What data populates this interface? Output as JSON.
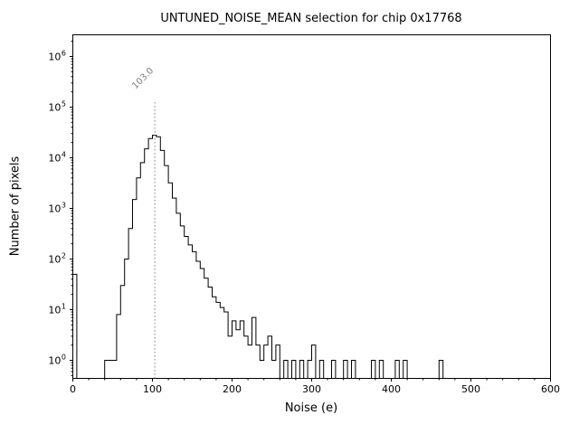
{
  "title": "UNTUNED_NOISE_MEAN selection for chip 0x17768",
  "chart_data": {
    "type": "bar",
    "subtype": "step-histogram",
    "title": "UNTUNED_NOISE_MEAN selection for chip 0x17768",
    "xlabel": "Noise (e)",
    "ylabel": "Number of pixels",
    "xlim": [
      0,
      600
    ],
    "yscale": "log",
    "ytick_exponents": [
      0,
      1,
      2,
      3,
      4,
      5,
      6
    ],
    "xticks": [
      0,
      100,
      200,
      300,
      400,
      500,
      600
    ],
    "x_minor_step": 20,
    "bin_width": 5,
    "bins": [
      [
        0,
        50
      ],
      [
        40,
        1
      ],
      [
        45,
        1
      ],
      [
        50,
        1
      ],
      [
        55,
        8
      ],
      [
        60,
        30
      ],
      [
        65,
        100
      ],
      [
        70,
        400
      ],
      [
        75,
        1500
      ],
      [
        80,
        4000
      ],
      [
        85,
        8000
      ],
      [
        90,
        15000
      ],
      [
        95,
        24000
      ],
      [
        100,
        28000
      ],
      [
        105,
        26000
      ],
      [
        110,
        14000
      ],
      [
        115,
        7000
      ],
      [
        120,
        3200
      ],
      [
        125,
        1600
      ],
      [
        130,
        800
      ],
      [
        135,
        450
      ],
      [
        140,
        280
      ],
      [
        145,
        190
      ],
      [
        150,
        140
      ],
      [
        155,
        90
      ],
      [
        160,
        65
      ],
      [
        165,
        42
      ],
      [
        170,
        28
      ],
      [
        175,
        18
      ],
      [
        180,
        14
      ],
      [
        185,
        11
      ],
      [
        190,
        9
      ],
      [
        195,
        3
      ],
      [
        200,
        6
      ],
      [
        205,
        4
      ],
      [
        210,
        6
      ],
      [
        215,
        3
      ],
      [
        220,
        2
      ],
      [
        225,
        7
      ],
      [
        230,
        2
      ],
      [
        235,
        1
      ],
      [
        240,
        2
      ],
      [
        245,
        3
      ],
      [
        250,
        1
      ],
      [
        255,
        2
      ],
      [
        265,
        1
      ],
      [
        275,
        1
      ],
      [
        285,
        1
      ],
      [
        295,
        1
      ],
      [
        300,
        2
      ],
      [
        310,
        1
      ],
      [
        325,
        1
      ],
      [
        340,
        1
      ],
      [
        350,
        1
      ],
      [
        375,
        1
      ],
      [
        385,
        1
      ],
      [
        405,
        1
      ],
      [
        415,
        1
      ],
      [
        460,
        1
      ]
    ],
    "line_color": "#000000",
    "axis_color": "#000000",
    "grid": false,
    "legend": null,
    "vline": {
      "x": 103,
      "label": "103.0",
      "color": "#808080",
      "style": "dotted"
    }
  }
}
